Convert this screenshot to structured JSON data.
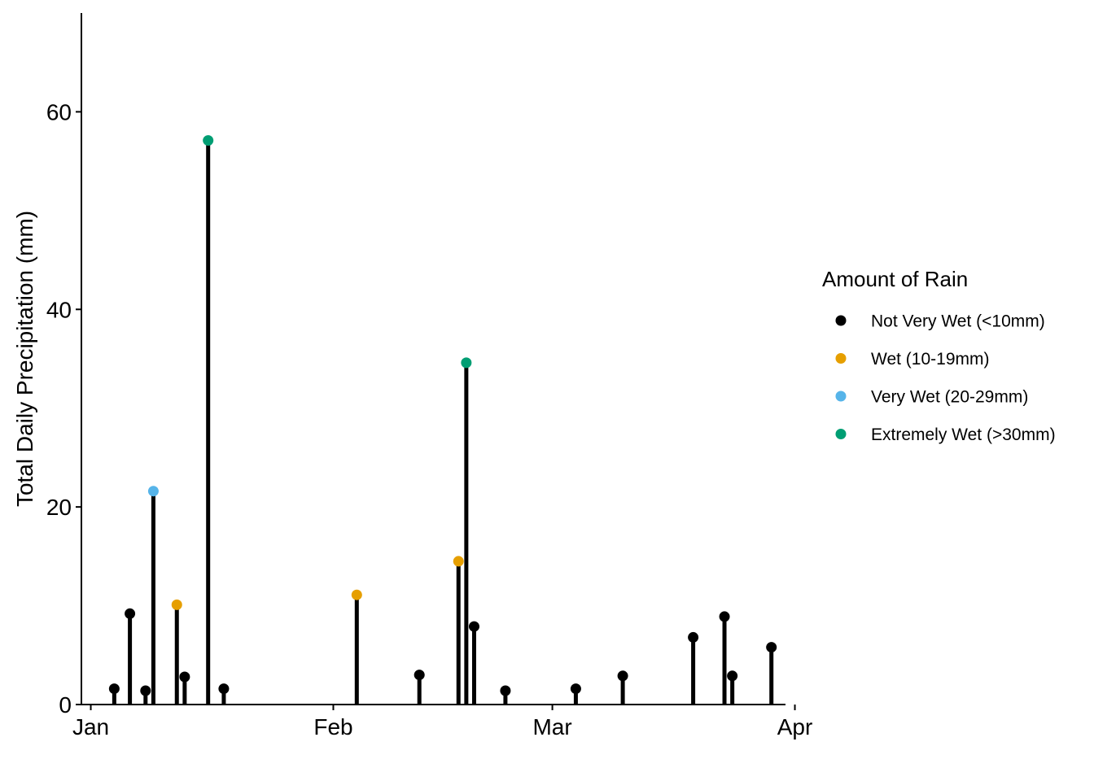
{
  "chart_data": {
    "type": "scatter",
    "subtype": "lollipop",
    "title": "",
    "xlabel": "",
    "ylabel": "Total Daily Precipitation (mm)",
    "x_ticks": [
      "Jan",
      "Feb",
      "Mar",
      "Apr"
    ],
    "x_tick_days": [
      1,
      32,
      60,
      91
    ],
    "xlim_days": [
      -0.2,
      89.8
    ],
    "y_ticks": [
      "0",
      "20",
      "40",
      "60"
    ],
    "y_tick_values": [
      0,
      20,
      40,
      60
    ],
    "ylim": [
      0,
      70
    ],
    "grid": false,
    "legend": {
      "title": "Amount of Rain",
      "placement": "right",
      "entries": [
        {
          "label": "Not Very Wet (<10mm)",
          "color": "#000000"
        },
        {
          "label": "Wet (10-19mm)",
          "color": "#E69F00"
        },
        {
          "label": "Very Wet (20-29mm)",
          "color": "#56B4E9"
        },
        {
          "label": "Extremely Wet (>30mm)",
          "color": "#009E73"
        }
      ]
    },
    "points": [
      {
        "day": 4,
        "value": 1.6,
        "category": 0
      },
      {
        "day": 6,
        "value": 9.2,
        "category": 0
      },
      {
        "day": 8,
        "value": 1.4,
        "category": 0
      },
      {
        "day": 9,
        "value": 21.6,
        "category": 2
      },
      {
        "day": 12,
        "value": 10.1,
        "category": 1
      },
      {
        "day": 13,
        "value": 2.8,
        "category": 0
      },
      {
        "day": 16,
        "value": 57.1,
        "category": 3
      },
      {
        "day": 18,
        "value": 1.6,
        "category": 0
      },
      {
        "day": 35,
        "value": 11.1,
        "category": 1
      },
      {
        "day": 43,
        "value": 3.0,
        "category": 0
      },
      {
        "day": 48,
        "value": 14.5,
        "category": 1
      },
      {
        "day": 49,
        "value": 34.6,
        "category": 3
      },
      {
        "day": 50,
        "value": 7.9,
        "category": 0
      },
      {
        "day": 54,
        "value": 1.4,
        "category": 0
      },
      {
        "day": 63,
        "value": 1.6,
        "category": 0
      },
      {
        "day": 69,
        "value": 2.9,
        "category": 0
      },
      {
        "day": 78,
        "value": 6.8,
        "category": 0
      },
      {
        "day": 82,
        "value": 8.9,
        "category": 0
      },
      {
        "day": 83,
        "value": 2.9,
        "category": 0
      },
      {
        "day": 88,
        "value": 5.8,
        "category": 0
      }
    ]
  }
}
